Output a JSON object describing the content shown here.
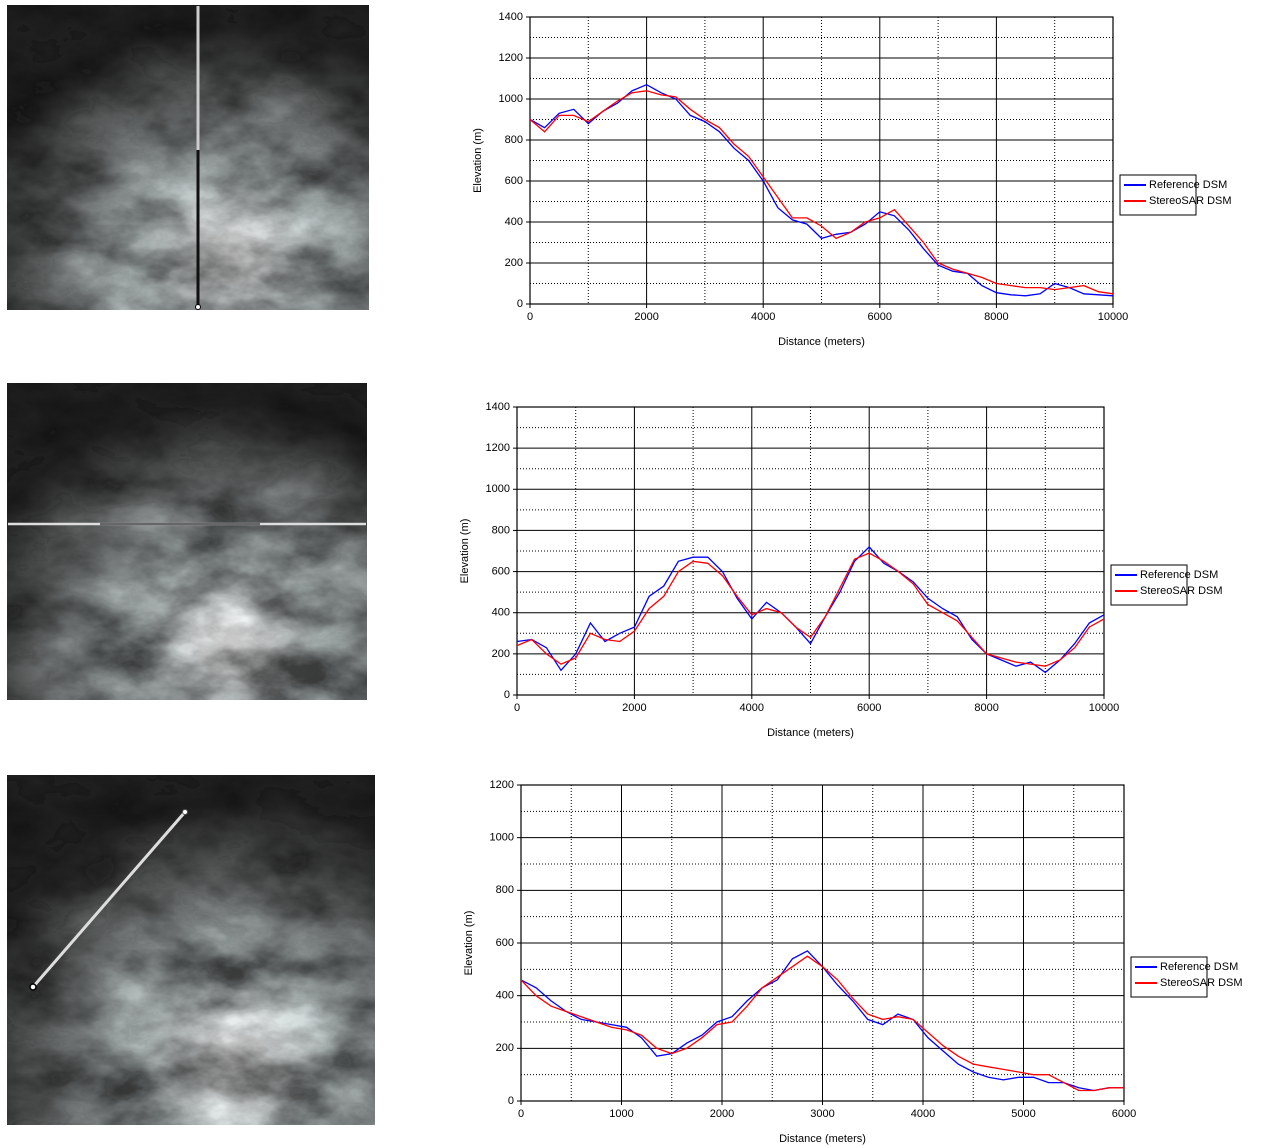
{
  "chart_data": [
    {
      "type": "line",
      "xlabel": "Distance (meters)",
      "ylabel": "Elevation (m)",
      "x": [
        0,
        250,
        500,
        750,
        1000,
        1250,
        1500,
        1750,
        2000,
        2250,
        2500,
        2750,
        3000,
        3250,
        3500,
        3750,
        4000,
        4250,
        4500,
        4750,
        5000,
        5250,
        5500,
        5750,
        6000,
        6250,
        6500,
        6750,
        7000,
        7250,
        7500,
        7750,
        8000,
        8250,
        8500,
        8750,
        9000,
        9250,
        9500,
        9750,
        10000
      ],
      "series": [
        {
          "name": "Reference DSM",
          "color": "#0000ff",
          "values": [
            900,
            860,
            930,
            950,
            880,
            940,
            980,
            1040,
            1070,
            1030,
            1000,
            920,
            890,
            840,
            760,
            700,
            600,
            470,
            410,
            390,
            320,
            340,
            350,
            390,
            450,
            430,
            360,
            270,
            190,
            160,
            150,
            90,
            55,
            45,
            40,
            50,
            100,
            80,
            50,
            45,
            40
          ]
        },
        {
          "name": "StereoSAR DSM",
          "color": "#ff0000",
          "values": [
            900,
            840,
            920,
            920,
            890,
            940,
            990,
            1030,
            1040,
            1020,
            1010,
            950,
            900,
            860,
            780,
            720,
            620,
            520,
            420,
            420,
            380,
            320,
            350,
            400,
            420,
            460,
            380,
            300,
            200,
            170,
            150,
            130,
            100,
            90,
            80,
            80,
            70,
            80,
            90,
            60,
            50
          ]
        }
      ],
      "xlim": [
        0,
        10000
      ],
      "xticks": [
        0,
        2000,
        4000,
        6000,
        8000,
        10000
      ],
      "ylim": [
        0,
        1400
      ],
      "yticks": [
        0,
        200,
        400,
        600,
        800,
        1000,
        1200,
        1400
      ],
      "grid": true,
      "minor_grid": true,
      "legend": "right"
    },
    {
      "type": "line",
      "xlabel": "Distance (meters)",
      "ylabel": "Elevation (m)",
      "x": [
        0,
        250,
        500,
        750,
        1000,
        1250,
        1500,
        1750,
        2000,
        2250,
        2500,
        2750,
        3000,
        3250,
        3500,
        3750,
        4000,
        4250,
        4500,
        4750,
        5000,
        5250,
        5500,
        5750,
        6000,
        6250,
        6500,
        6750,
        7000,
        7250,
        7500,
        7750,
        8000,
        8250,
        8500,
        8750,
        9000,
        9250,
        9500,
        9750,
        10000
      ],
      "series": [
        {
          "name": "Reference DSM",
          "color": "#0000ff",
          "values": [
            260,
            270,
            230,
            120,
            200,
            350,
            260,
            300,
            330,
            480,
            530,
            650,
            670,
            670,
            600,
            470,
            370,
            450,
            400,
            330,
            250,
            380,
            500,
            650,
            720,
            640,
            600,
            550,
            470,
            420,
            380,
            270,
            200,
            170,
            140,
            160,
            110,
            170,
            250,
            350,
            390
          ]
        },
        {
          "name": "StereoSAR DSM",
          "color": "#ff0000",
          "values": [
            240,
            270,
            200,
            150,
            180,
            300,
            270,
            260,
            310,
            420,
            480,
            600,
            650,
            640,
            580,
            480,
            390,
            420,
            400,
            330,
            280,
            380,
            520,
            660,
            690,
            650,
            600,
            540,
            440,
            400,
            360,
            280,
            200,
            180,
            160,
            150,
            140,
            170,
            230,
            330,
            370
          ]
        }
      ],
      "xlim": [
        0,
        10000
      ],
      "xticks": [
        0,
        2000,
        4000,
        6000,
        8000,
        10000
      ],
      "ylim": [
        0,
        1400
      ],
      "yticks": [
        0,
        200,
        400,
        600,
        800,
        1000,
        1200,
        1400
      ],
      "grid": true,
      "minor_grid": true,
      "legend": "right"
    },
    {
      "type": "line",
      "xlabel": "Distance (meters)",
      "ylabel": "Elevation (m)",
      "x": [
        0,
        150,
        300,
        450,
        600,
        750,
        900,
        1050,
        1200,
        1350,
        1500,
        1650,
        1800,
        1950,
        2100,
        2250,
        2400,
        2550,
        2700,
        2850,
        3000,
        3150,
        3300,
        3450,
        3600,
        3750,
        3900,
        4050,
        4200,
        4350,
        4500,
        4650,
        4800,
        4950,
        5100,
        5250,
        5400,
        5550,
        5700,
        5850,
        6000
      ],
      "series": [
        {
          "name": "Reference DSM",
          "color": "#0000ff",
          "values": [
            460,
            430,
            380,
            340,
            310,
            300,
            290,
            280,
            240,
            170,
            180,
            220,
            250,
            300,
            320,
            380,
            430,
            460,
            540,
            570,
            510,
            440,
            380,
            310,
            290,
            330,
            310,
            240,
            190,
            140,
            110,
            90,
            80,
            90,
            90,
            70,
            70,
            50,
            40,
            50,
            50
          ]
        },
        {
          "name": "StereoSAR DSM",
          "color": "#ff0000",
          "values": [
            460,
            400,
            360,
            340,
            320,
            300,
            280,
            270,
            250,
            200,
            180,
            200,
            240,
            290,
            300,
            360,
            430,
            470,
            510,
            550,
            510,
            460,
            390,
            330,
            310,
            320,
            310,
            260,
            210,
            170,
            140,
            130,
            120,
            110,
            100,
            100,
            70,
            40,
            40,
            50,
            50
          ]
        }
      ],
      "xlim": [
        0,
        6000
      ],
      "xticks": [
        0,
        1000,
        2000,
        3000,
        4000,
        5000,
        6000
      ],
      "ylim": [
        0,
        1200
      ],
      "yticks": [
        0,
        200,
        400,
        600,
        800,
        1000,
        1200
      ],
      "grid": true,
      "minor_grid": true,
      "legend": "right"
    }
  ]
}
